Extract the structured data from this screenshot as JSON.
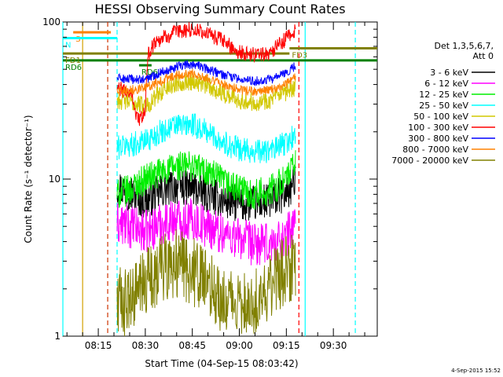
{
  "chart_data": {
    "type": "line",
    "title": "HESSI Observing Summary Count Rates",
    "xlabel": "Start Time (04-Sep-15 08:03:42)",
    "ylabel": "Count Rate (s⁻¹ detector⁻¹)",
    "y_scale": "log",
    "ylim": [
      1,
      100
    ],
    "y_ticks": [
      {
        "value": 1,
        "label": "1"
      },
      {
        "value": 10,
        "label": "10"
      },
      {
        "value": 100,
        "label": "100"
      }
    ],
    "xlim": [
      "08:03:42",
      "09:44:00"
    ],
    "x_ticks": [
      {
        "value": "08:15",
        "label": "08:15"
      },
      {
        "value": "08:30",
        "label": "08:30"
      },
      {
        "value": "08:45",
        "label": "08:45"
      },
      {
        "value": "09:00",
        "label": "09:00"
      },
      {
        "value": "09:15",
        "label": "09:15"
      },
      {
        "value": "09:30",
        "label": "09:30"
      }
    ],
    "legend": {
      "placement": "right",
      "header": [
        "Det 1,3,5,6,7,",
        "Att 0"
      ],
      "entries": [
        {
          "label": "3 - 6 keV",
          "color": "#000000"
        },
        {
          "label": "6 - 12 keV",
          "color": "#ff00ff"
        },
        {
          "label": "12 - 25 keV",
          "color": "#00ee00"
        },
        {
          "label": "25 - 50 keV",
          "color": "#00ffff"
        },
        {
          "label": "50 - 100 keV",
          "color": "#d2c800"
        },
        {
          "label": "100 - 300 keV",
          "color": "#ff0000"
        },
        {
          "label": "300 - 800 keV",
          "color": "#0000ff"
        },
        {
          "label": "800 - 7000 keV",
          "color": "#ff8000"
        },
        {
          "label": "7000 - 20000 keV",
          "color": "#808000"
        }
      ]
    },
    "series": [
      {
        "name": "3 - 6 keV",
        "color": "#000000",
        "x": [
          "08:21",
          "08:26",
          "08:30",
          "08:36",
          "08:40",
          "08:45",
          "08:50",
          "08:55",
          "09:00",
          "09:05",
          "09:10",
          "09:15",
          "09:18"
        ],
        "y": [
          9.0,
          8.0,
          7.2,
          8.5,
          9.0,
          8.8,
          8.0,
          7.3,
          7.0,
          7.0,
          7.2,
          8.2,
          9.5
        ],
        "noise": 0.12
      },
      {
        "name": "6 - 12 keV",
        "color": "#ff00ff",
        "x": [
          "08:21",
          "08:25",
          "08:30",
          "08:35",
          "08:40",
          "08:45",
          "08:50",
          "08:55",
          "09:00",
          "09:05",
          "09:10",
          "09:15",
          "09:18"
        ],
        "y": [
          5.2,
          5.0,
          4.6,
          5.2,
          5.6,
          5.5,
          5.0,
          4.5,
          4.2,
          3.8,
          3.8,
          4.3,
          5.5
        ],
        "noise": 0.14
      },
      {
        "name": "12 - 25 keV",
        "color": "#00ee00",
        "x": [
          "08:21",
          "08:25",
          "08:30",
          "08:35",
          "08:40",
          "08:45",
          "08:50",
          "08:55",
          "09:00",
          "09:05",
          "09:10",
          "09:15",
          "09:18"
        ],
        "y": [
          8.0,
          8.5,
          10.0,
          11.0,
          12.0,
          12.2,
          11.0,
          9.5,
          8.5,
          8.0,
          8.5,
          10.0,
          12.5
        ],
        "noise": 0.1
      },
      {
        "name": "25 - 50 keV",
        "color": "#00ffff",
        "x": [
          "08:21",
          "08:25",
          "08:30",
          "08:35",
          "08:40",
          "08:45",
          "08:50",
          "08:55",
          "09:00",
          "09:05",
          "09:10",
          "09:15",
          "09:18"
        ],
        "y": [
          16.0,
          16.5,
          17.5,
          20.0,
          22.0,
          22.0,
          20.0,
          17.0,
          15.5,
          15.0,
          15.0,
          17.0,
          19.0
        ],
        "noise": 0.08
      },
      {
        "name": "50 - 100 keV",
        "color": "#d2c800",
        "x": [
          "08:21",
          "08:25",
          "08:28",
          "08:30",
          "08:32",
          "08:35",
          "08:40",
          "08:45",
          "08:50",
          "08:55",
          "09:00",
          "09:05",
          "09:10",
          "09:15",
          "09:18"
        ],
        "y": [
          32.0,
          31.0,
          30.0,
          29.5,
          31.0,
          36.0,
          41.0,
          42.0,
          39.0,
          35.0,
          32.0,
          31.0,
          32.0,
          35.0,
          38.0
        ],
        "noise": 0.06
      },
      {
        "name": "100 - 300 keV",
        "color": "#ff0000",
        "x": [
          "08:21",
          "08:24",
          "08:26",
          "08:27",
          "08:29",
          "08:30",
          "08:31",
          "08:33",
          "08:36",
          "08:40",
          "08:45",
          "08:50",
          "08:55",
          "09:00",
          "09:05",
          "09:10",
          "09:13",
          "09:16",
          "09:18"
        ],
        "y": [
          38.0,
          36.0,
          34.0,
          25.0,
          24.0,
          28.0,
          62.0,
          75.0,
          80.0,
          86.0,
          90.0,
          84.0,
          75.0,
          64.0,
          62.0,
          64.0,
          72.0,
          82.0,
          90.0
        ],
        "noise": 0.05
      },
      {
        "name": "300 - 800 keV",
        "color": "#0000ff",
        "x": [
          "08:21",
          "08:25",
          "08:30",
          "08:35",
          "08:40",
          "08:45",
          "08:50",
          "08:55",
          "09:00",
          "09:05",
          "09:10",
          "09:15",
          "09:18"
        ],
        "y": [
          44.0,
          43.0,
          43.0,
          48.0,
          52.0,
          54.0,
          50.0,
          46.0,
          43.0,
          42.0,
          43.0,
          47.0,
          53.0
        ],
        "noise": 0.03
      },
      {
        "name": "800 - 7000 keV",
        "color": "#ff8000",
        "x": [
          "08:21",
          "08:25",
          "08:30",
          "08:35",
          "08:40",
          "08:45",
          "08:50",
          "08:55",
          "09:00",
          "09:05",
          "09:10",
          "09:15",
          "09:18"
        ],
        "y": [
          37.0,
          37.0,
          38.0,
          42.0,
          46.0,
          47.0,
          44.0,
          40.0,
          37.0,
          36.0,
          37.0,
          40.0,
          45.0
        ],
        "noise": 0.03
      },
      {
        "name": "7000 - 20000 keV",
        "color": "#808000",
        "x": [
          "08:21",
          "08:25",
          "08:30",
          "08:35",
          "08:40",
          "08:45",
          "08:50",
          "08:55",
          "09:00",
          "09:05",
          "09:10",
          "09:15",
          "09:18"
        ],
        "y": [
          1.7,
          1.6,
          2.2,
          2.7,
          2.9,
          2.6,
          2.1,
          1.7,
          1.6,
          1.7,
          2.1,
          2.7,
          2.7
        ],
        "noise": 0.22
      }
    ],
    "annotations": [
      {
        "label": "S",
        "color": "#ff8000",
        "x_range": [
          "08:07",
          "08:19"
        ],
        "level": 86
      },
      {
        "label": "N",
        "color": "#00ffff",
        "x_range": [
          "08:03:42",
          "08:21"
        ],
        "level": 79
      },
      {
        "label": "RD6",
        "color": "#008000",
        "x_range": [
          "08:03:42",
          "09:44"
        ],
        "level": 57
      },
      {
        "label": "RD6",
        "color": "#008000",
        "x_range": [
          "08:28",
          "08:32"
        ],
        "level": 53
      },
      {
        "label": "FD1",
        "color": "#808000",
        "x_range": [
          "08:03:42",
          "09:16"
        ],
        "level": 63
      },
      {
        "label": "FD3",
        "color": "#808000",
        "x_range": [
          "09:16",
          "09:44"
        ],
        "level": 68
      }
    ],
    "vertical_markers": [
      {
        "x": "08:03:42",
        "color": "#00ffff",
        "style": "solid"
      },
      {
        "x": "08:10",
        "color": "#d2a000",
        "style": "solid"
      },
      {
        "x": "08:18",
        "color": "#cc3300",
        "style": "dashed"
      },
      {
        "x": "08:21",
        "color": "#00ffff",
        "style": "dashed"
      },
      {
        "x": "09:19",
        "color": "#ff0000",
        "style": "dashed"
      },
      {
        "x": "09:21",
        "color": "#00ffff",
        "style": "solid"
      },
      {
        "x": "09:37",
        "color": "#00ffff",
        "style": "dashed"
      }
    ],
    "timestamp": "4-Sep-2015 15:52"
  }
}
